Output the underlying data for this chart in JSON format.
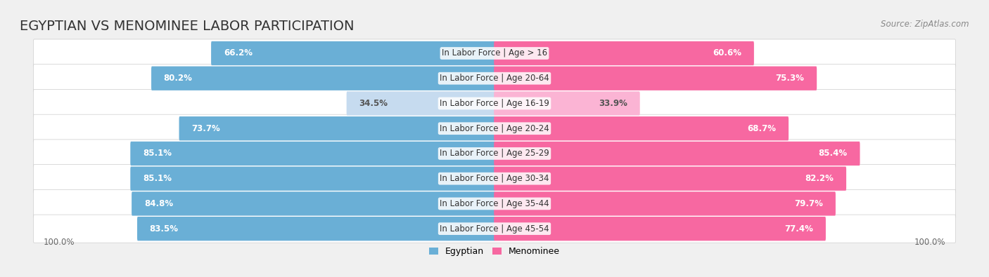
{
  "title": "EGYPTIAN VS MENOMINEE LABOR PARTICIPATION",
  "source": "Source: ZipAtlas.com",
  "categories": [
    "In Labor Force | Age > 16",
    "In Labor Force | Age 20-64",
    "In Labor Force | Age 16-19",
    "In Labor Force | Age 20-24",
    "In Labor Force | Age 25-29",
    "In Labor Force | Age 30-34",
    "In Labor Force | Age 35-44",
    "In Labor Force | Age 45-54"
  ],
  "egyptian_values": [
    66.2,
    80.2,
    34.5,
    73.7,
    85.1,
    85.1,
    84.8,
    83.5
  ],
  "menominee_values": [
    60.6,
    75.3,
    33.9,
    68.7,
    85.4,
    82.2,
    79.7,
    77.4
  ],
  "egyptian_color": "#6aafd6",
  "menominee_color": "#f768a1",
  "egyptian_light_color": "#c6dbef",
  "menominee_light_color": "#fbb4d4",
  "row_bg_color": "#e8e8e8",
  "bg_color": "#f0f0f0",
  "max_value": 100.0,
  "bar_height": 0.72,
  "title_fontsize": 14,
  "label_fontsize": 8.5,
  "value_fontsize": 8.5,
  "footer_fontsize": 8.5,
  "legend_fontsize": 9
}
